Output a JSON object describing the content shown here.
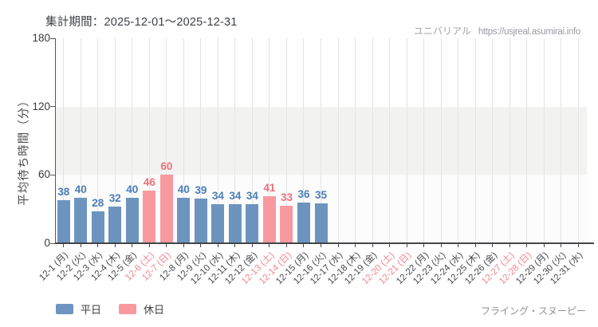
{
  "header": {
    "title": "集計期間：2025-12-01～2025-12-31",
    "watermark_name": "ユニバリアル",
    "watermark_url": "https://usjreal.asumirai.info"
  },
  "footer": {
    "attraction": "フライング・スヌーピー"
  },
  "colors": {
    "weekday_bar": "#6d94be",
    "holiday_bar": "#f8999f",
    "weekday_value_label": "#4a7eb8",
    "holiday_value_label": "#ef707c",
    "weekday_tick_label": "#46484c",
    "holiday_tick_label": "#f2858f",
    "band_white": "#fdfefd",
    "band_gray": "#f2f3f1",
    "band_bottom": "#fbfcfb",
    "gridline": "#e4e4e4"
  },
  "chart_data": {
    "type": "bar",
    "title": "集計期間：2025-12-01～2025-12-31",
    "xlabel": "",
    "ylabel": "平均待ち時間（分）",
    "ylim": [
      0,
      180
    ],
    "yticks": [
      0,
      60,
      120,
      180
    ],
    "grid": "vertical-per-day",
    "legend_position": "bottom-left",
    "legend": [
      {
        "name": "平日",
        "color": "#6d94be"
      },
      {
        "name": "休日",
        "color": "#f8999f"
      }
    ],
    "categories": [
      "12-1 (月)",
      "12-2 (火)",
      "12-3 (水)",
      "12-4 (木)",
      "12-5 (金)",
      "12-6 (土)",
      "12-7 (日)",
      "12-8 (月)",
      "12-9 (火)",
      "12-10 (水)",
      "12-11 (木)",
      "12-12 (金)",
      "12-13 (土)",
      "12-14 (日)",
      "12-15 (月)",
      "12-16 (火)",
      "12-17 (水)",
      "12-18 (木)",
      "12-19 (金)",
      "12-20 (土)",
      "12-21 (日)",
      "12-22 (月)",
      "12-23 (火)",
      "12-24 (水)",
      "12-25 (木)",
      "12-26 (金)",
      "12-27 (土)",
      "12-28 (日)",
      "12-29 (月)",
      "12-30 (火)",
      "12-31 (水)"
    ],
    "values": [
      38,
      40,
      28,
      32,
      40,
      46,
      60,
      40,
      39,
      34,
      34,
      34,
      41,
      33,
      36,
      35,
      null,
      null,
      null,
      null,
      null,
      null,
      null,
      null,
      null,
      null,
      null,
      null,
      null,
      null,
      null
    ],
    "holiday_flags": [
      false,
      false,
      false,
      false,
      false,
      true,
      true,
      false,
      false,
      false,
      false,
      false,
      true,
      true,
      false,
      false,
      false,
      false,
      false,
      true,
      true,
      false,
      false,
      false,
      false,
      false,
      true,
      true,
      false,
      false,
      false
    ]
  }
}
